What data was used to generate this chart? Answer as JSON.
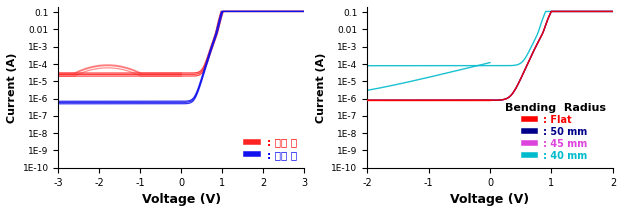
{
  "left": {
    "ylabel": "Current (A)",
    "xlabel": "Voltage (V)",
    "xlim": [
      -3,
      3
    ],
    "yticks_labels": [
      "1E-10",
      "1E-9",
      "1E-8",
      "1E-7",
      "1E-6",
      "1E-5",
      "1E-4",
      "1E-3",
      "0.01",
      "0.1"
    ],
    "yticks_vals": [
      1e-10,
      1e-09,
      1e-08,
      1e-07,
      1e-06,
      1e-05,
      0.0001,
      0.001,
      0.01,
      0.1
    ],
    "xticks": [
      -3,
      -2,
      -1,
      0,
      1,
      2,
      3
    ],
    "legend": [
      {
        "label": ": 공정 전",
        "color": "#FF0000"
      },
      {
        "label": ": 공정 후",
        "color": "#0000EE"
      }
    ]
  },
  "right": {
    "ylabel": "Current (A)",
    "xlabel": "Voltage (V)",
    "xlim": [
      -2,
      2
    ],
    "yticks_labels": [
      "1E-10",
      "1E-9",
      "1E-8",
      "1E-7",
      "1E-6",
      "1E-5",
      "1E-4",
      "1E-3",
      "0.01",
      "0.1"
    ],
    "yticks_vals": [
      1e-10,
      1e-09,
      1e-08,
      1e-07,
      1e-06,
      1e-05,
      0.0001,
      0.001,
      0.01,
      0.1
    ],
    "xticks": [
      -2,
      -1,
      0,
      1,
      2
    ],
    "legend_title": "Bending  Radius",
    "legend": [
      {
        "label": ": Flat",
        "color": "#FF0000"
      },
      {
        "label": ": 50 mm",
        "color": "#00008B"
      },
      {
        "label": ": 45 mm",
        "color": "#DD44DD"
      },
      {
        "label": ": 40 mm",
        "color": "#00BBCC"
      }
    ]
  }
}
